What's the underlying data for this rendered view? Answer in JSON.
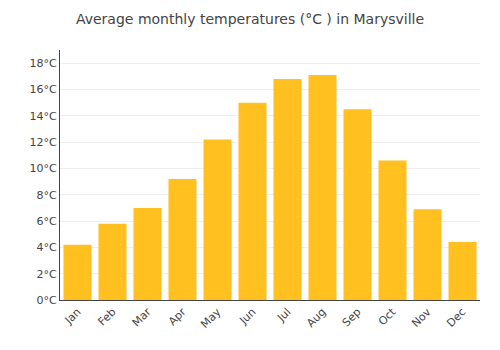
{
  "chart_data": {
    "type": "bar",
    "title": "Average monthly temperatures (°C ) in Marysville",
    "categories": [
      "Jan",
      "Feb",
      "Mar",
      "Apr",
      "May",
      "Jun",
      "Jul",
      "Aug",
      "Sep",
      "Oct",
      "Nov",
      "Dec"
    ],
    "values": [
      4.2,
      5.8,
      7.0,
      9.2,
      12.2,
      15.0,
      16.8,
      17.1,
      14.5,
      10.6,
      6.9,
      4.4
    ],
    "color": "#FFC020",
    "ylim": [
      0,
      19
    ],
    "yticks": [
      {
        "value": 0,
        "label": "0°C"
      },
      {
        "value": 2,
        "label": "2°C"
      },
      {
        "value": 4,
        "label": "4°C"
      },
      {
        "value": 6,
        "label": "6°C"
      },
      {
        "value": 8,
        "label": "8°C"
      },
      {
        "value": 10,
        "label": "10°C"
      },
      {
        "value": 12,
        "label": "12°C"
      },
      {
        "value": 14,
        "label": "14°C"
      },
      {
        "value": 16,
        "label": "16°C"
      },
      {
        "value": 18,
        "label": "18°C"
      }
    ],
    "grid": true
  }
}
